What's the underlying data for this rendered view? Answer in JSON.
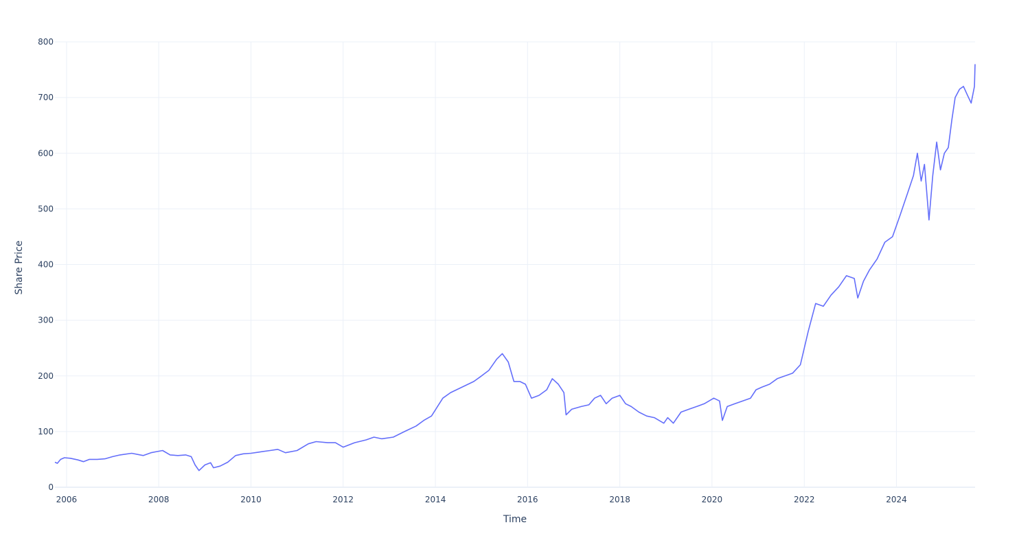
{
  "chart_data": {
    "type": "line",
    "title": "",
    "xlabel": "Time",
    "ylabel": "Share Price",
    "x_ticks": [
      "2006",
      "2008",
      "2010",
      "2012",
      "2014",
      "2016",
      "2018",
      "2020",
      "2022",
      "2024"
    ],
    "y_ticks": [
      "0",
      "100",
      "200",
      "300",
      "400",
      "500",
      "600",
      "700",
      "800"
    ],
    "xlim": [
      "2005-10-01",
      "2025-09-15"
    ],
    "ylim": [
      0,
      800
    ],
    "grid": true,
    "line_color": "#636efa",
    "series": [
      {
        "x": [
          "2005-10-01",
          "2005-10-20",
          "2005-11-15",
          "2005-12-15",
          "2006-02-01",
          "2006-04-01",
          "2006-05-15",
          "2006-07-01",
          "2006-09-01",
          "2006-11-01",
          "2007-01-01",
          "2007-03-01",
          "2007-06-01",
          "2007-09-01",
          "2007-11-01",
          "2007-12-15",
          "2008-02-01",
          "2008-04-01",
          "2008-06-01",
          "2008-08-01",
          "2008-09-15",
          "2008-10-15",
          "2008-11-15",
          "2009-01-01",
          "2009-02-15",
          "2009-03-10",
          "2009-05-01",
          "2009-07-01",
          "2009-09-01",
          "2009-11-01",
          "2010-01-01",
          "2010-03-01",
          "2010-06-01",
          "2010-08-01",
          "2010-10-01",
          "2011-01-01",
          "2011-04-01",
          "2011-06-01",
          "2011-09-01",
          "2011-11-01",
          "2012-01-01",
          "2012-04-01",
          "2012-07-01",
          "2012-09-01",
          "2012-11-01",
          "2013-02-01",
          "2013-05-01",
          "2013-08-01",
          "2013-10-01",
          "2013-12-01",
          "2014-03-01",
          "2014-05-01",
          "2014-08-01",
          "2014-11-01",
          "2015-01-01",
          "2015-03-01",
          "2015-05-01",
          "2015-06-15",
          "2015-08-01",
          "2015-09-15",
          "2015-11-01",
          "2015-12-15",
          "2016-02-01",
          "2016-04-01",
          "2016-06-01",
          "2016-07-15",
          "2016-09-01",
          "2016-10-15",
          "2016-11-01",
          "2016-12-15",
          "2017-03-01",
          "2017-05-01",
          "2017-06-15",
          "2017-08-01",
          "2017-09-15",
          "2017-11-01",
          "2018-01-01",
          "2018-02-15",
          "2018-04-01",
          "2018-06-01",
          "2018-08-01",
          "2018-10-01",
          "2018-12-15",
          "2019-01-15",
          "2019-03-01",
          "2019-05-01",
          "2019-07-01",
          "2019-09-01",
          "2019-11-01",
          "2020-01-15",
          "2020-03-01",
          "2020-03-23",
          "2020-05-01",
          "2020-07-01",
          "2020-09-01",
          "2020-11-01",
          "2020-12-15",
          "2021-02-01",
          "2021-04-01",
          "2021-06-01",
          "2021-08-01",
          "2021-10-01",
          "2021-12-01",
          "2022-02-01",
          "2022-04-01",
          "2022-06-01",
          "2022-08-01",
          "2022-10-01",
          "2022-12-01",
          "2023-02-01",
          "2023-03-01",
          "2023-04-15",
          "2023-06-01",
          "2023-08-01",
          "2023-10-01",
          "2023-12-01",
          "2024-02-01",
          "2024-04-01",
          "2024-05-15",
          "2024-06-15",
          "2024-07-15",
          "2024-08-10",
          "2024-09-15",
          "2024-10-15",
          "2024-11-15",
          "2024-12-15",
          "2025-01-15",
          "2025-02-15",
          "2025-03-15",
          "2025-04-10",
          "2025-05-15",
          "2025-06-15",
          "2025-07-15",
          "2025-08-15",
          "2025-09-10",
          "2025-09-15"
        ],
        "y": [
          45,
          43,
          50,
          53,
          52,
          49,
          46,
          50,
          50,
          51,
          55,
          58,
          61,
          57,
          62,
          64,
          66,
          58,
          57,
          58,
          55,
          40,
          30,
          40,
          44,
          35,
          38,
          45,
          57,
          60,
          61,
          63,
          66,
          68,
          62,
          66,
          78,
          82,
          80,
          80,
          72,
          80,
          85,
          90,
          87,
          90,
          100,
          110,
          120,
          128,
          160,
          170,
          180,
          190,
          200,
          210,
          230,
          240,
          225,
          190,
          190,
          185,
          160,
          165,
          175,
          195,
          185,
          170,
          130,
          140,
          145,
          148,
          160,
          165,
          150,
          160,
          165,
          150,
          145,
          135,
          128,
          125,
          115,
          125,
          115,
          135,
          140,
          145,
          150,
          160,
          155,
          120,
          145,
          150,
          155,
          160,
          175,
          180,
          185,
          195,
          200,
          205,
          220,
          280,
          330,
          325,
          345,
          360,
          380,
          375,
          340,
          370,
          390,
          410,
          440,
          450,
          490,
          530,
          560,
          600,
          550,
          580,
          480,
          560,
          620,
          570,
          600,
          610,
          660,
          700,
          715,
          720,
          705,
          690,
          720,
          760
        ]
      }
    ]
  }
}
